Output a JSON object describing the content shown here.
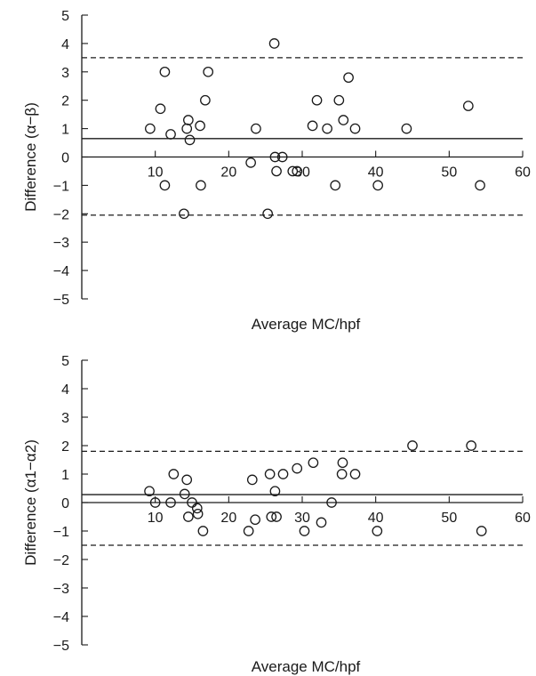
{
  "chart_data": [
    {
      "type": "scatter",
      "xlabel": "Average MC/hpf",
      "ylabel": "Difference (α−β)",
      "xlim": [
        0,
        60
      ],
      "ylim": [
        -5,
        5
      ],
      "x_ticks": [
        "10",
        "20",
        "30",
        "40",
        "50",
        "60"
      ],
      "y_ticks": [
        "5",
        "4",
        "3",
        "2",
        "1",
        "0",
        "-1",
        "-2",
        "-3",
        "-4",
        "-5"
      ],
      "mean_difference": 0.65,
      "limits_of_agreement": [
        -2.05,
        3.5
      ],
      "points": [
        [
          9.3,
          1.0
        ],
        [
          10.7,
          1.7
        ],
        [
          11.3,
          3.0
        ],
        [
          11.3,
          -1.0
        ],
        [
          12.1,
          0.8
        ],
        [
          13.9,
          -2.0
        ],
        [
          14.3,
          1.0
        ],
        [
          14.5,
          1.3
        ],
        [
          14.7,
          0.6
        ],
        [
          16.1,
          1.1
        ],
        [
          16.2,
          -1.0
        ],
        [
          16.8,
          2.0
        ],
        [
          17.2,
          3.0
        ],
        [
          23.0,
          -0.2
        ],
        [
          23.7,
          1.0
        ],
        [
          25.3,
          -2.0
        ],
        [
          26.2,
          4.0
        ],
        [
          26.3,
          0.0
        ],
        [
          26.5,
          -0.5
        ],
        [
          27.3,
          0.0
        ],
        [
          28.7,
          -0.5
        ],
        [
          29.3,
          -0.5
        ],
        [
          31.4,
          1.1
        ],
        [
          32.0,
          2.0
        ],
        [
          33.4,
          1.0
        ],
        [
          34.5,
          -1.0
        ],
        [
          35.0,
          2.0
        ],
        [
          35.6,
          1.3
        ],
        [
          36.3,
          2.8
        ],
        [
          37.2,
          1.0
        ],
        [
          40.3,
          -1.0
        ],
        [
          44.2,
          1.0
        ],
        [
          52.6,
          1.8
        ],
        [
          54.2,
          -1.0
        ]
      ]
    },
    {
      "type": "scatter",
      "xlabel": "Average MC/hpf",
      "ylabel": "Difference (α1−α2)",
      "xlim": [
        0,
        60
      ],
      "ylim": [
        -5,
        5
      ],
      "x_ticks": [
        "10",
        "20",
        "30",
        "40",
        "50",
        "60"
      ],
      "y_ticks": [
        "5",
        "4",
        "3",
        "2",
        "1",
        "0",
        "-1",
        "-2",
        "-3",
        "-4",
        "-5"
      ],
      "mean_difference": 0.28,
      "limits_of_agreement": [
        -1.5,
        1.8
      ],
      "points": [
        [
          9.2,
          0.4
        ],
        [
          10.0,
          0.0
        ],
        [
          12.1,
          0.0
        ],
        [
          12.5,
          1.0
        ],
        [
          14.0,
          0.3
        ],
        [
          14.3,
          0.8
        ],
        [
          14.5,
          -0.5
        ],
        [
          15.0,
          0.0
        ],
        [
          15.7,
          -0.2
        ],
        [
          15.8,
          -0.4
        ],
        [
          16.5,
          -1.0
        ],
        [
          22.7,
          -1.0
        ],
        [
          23.2,
          0.8
        ],
        [
          23.6,
          -0.6
        ],
        [
          25.6,
          1.0
        ],
        [
          25.8,
          -0.5
        ],
        [
          26.3,
          0.4
        ],
        [
          26.5,
          -0.5
        ],
        [
          27.4,
          1.0
        ],
        [
          29.3,
          1.2
        ],
        [
          30.3,
          -1.0
        ],
        [
          31.5,
          1.4
        ],
        [
          32.6,
          -0.7
        ],
        [
          34.0,
          0.0
        ],
        [
          35.5,
          1.4
        ],
        [
          35.4,
          1.0
        ],
        [
          37.2,
          1.0
        ],
        [
          40.2,
          -1.0
        ],
        [
          45.0,
          2.0
        ],
        [
          53.0,
          2.0
        ],
        [
          54.4,
          -1.0
        ]
      ]
    }
  ]
}
